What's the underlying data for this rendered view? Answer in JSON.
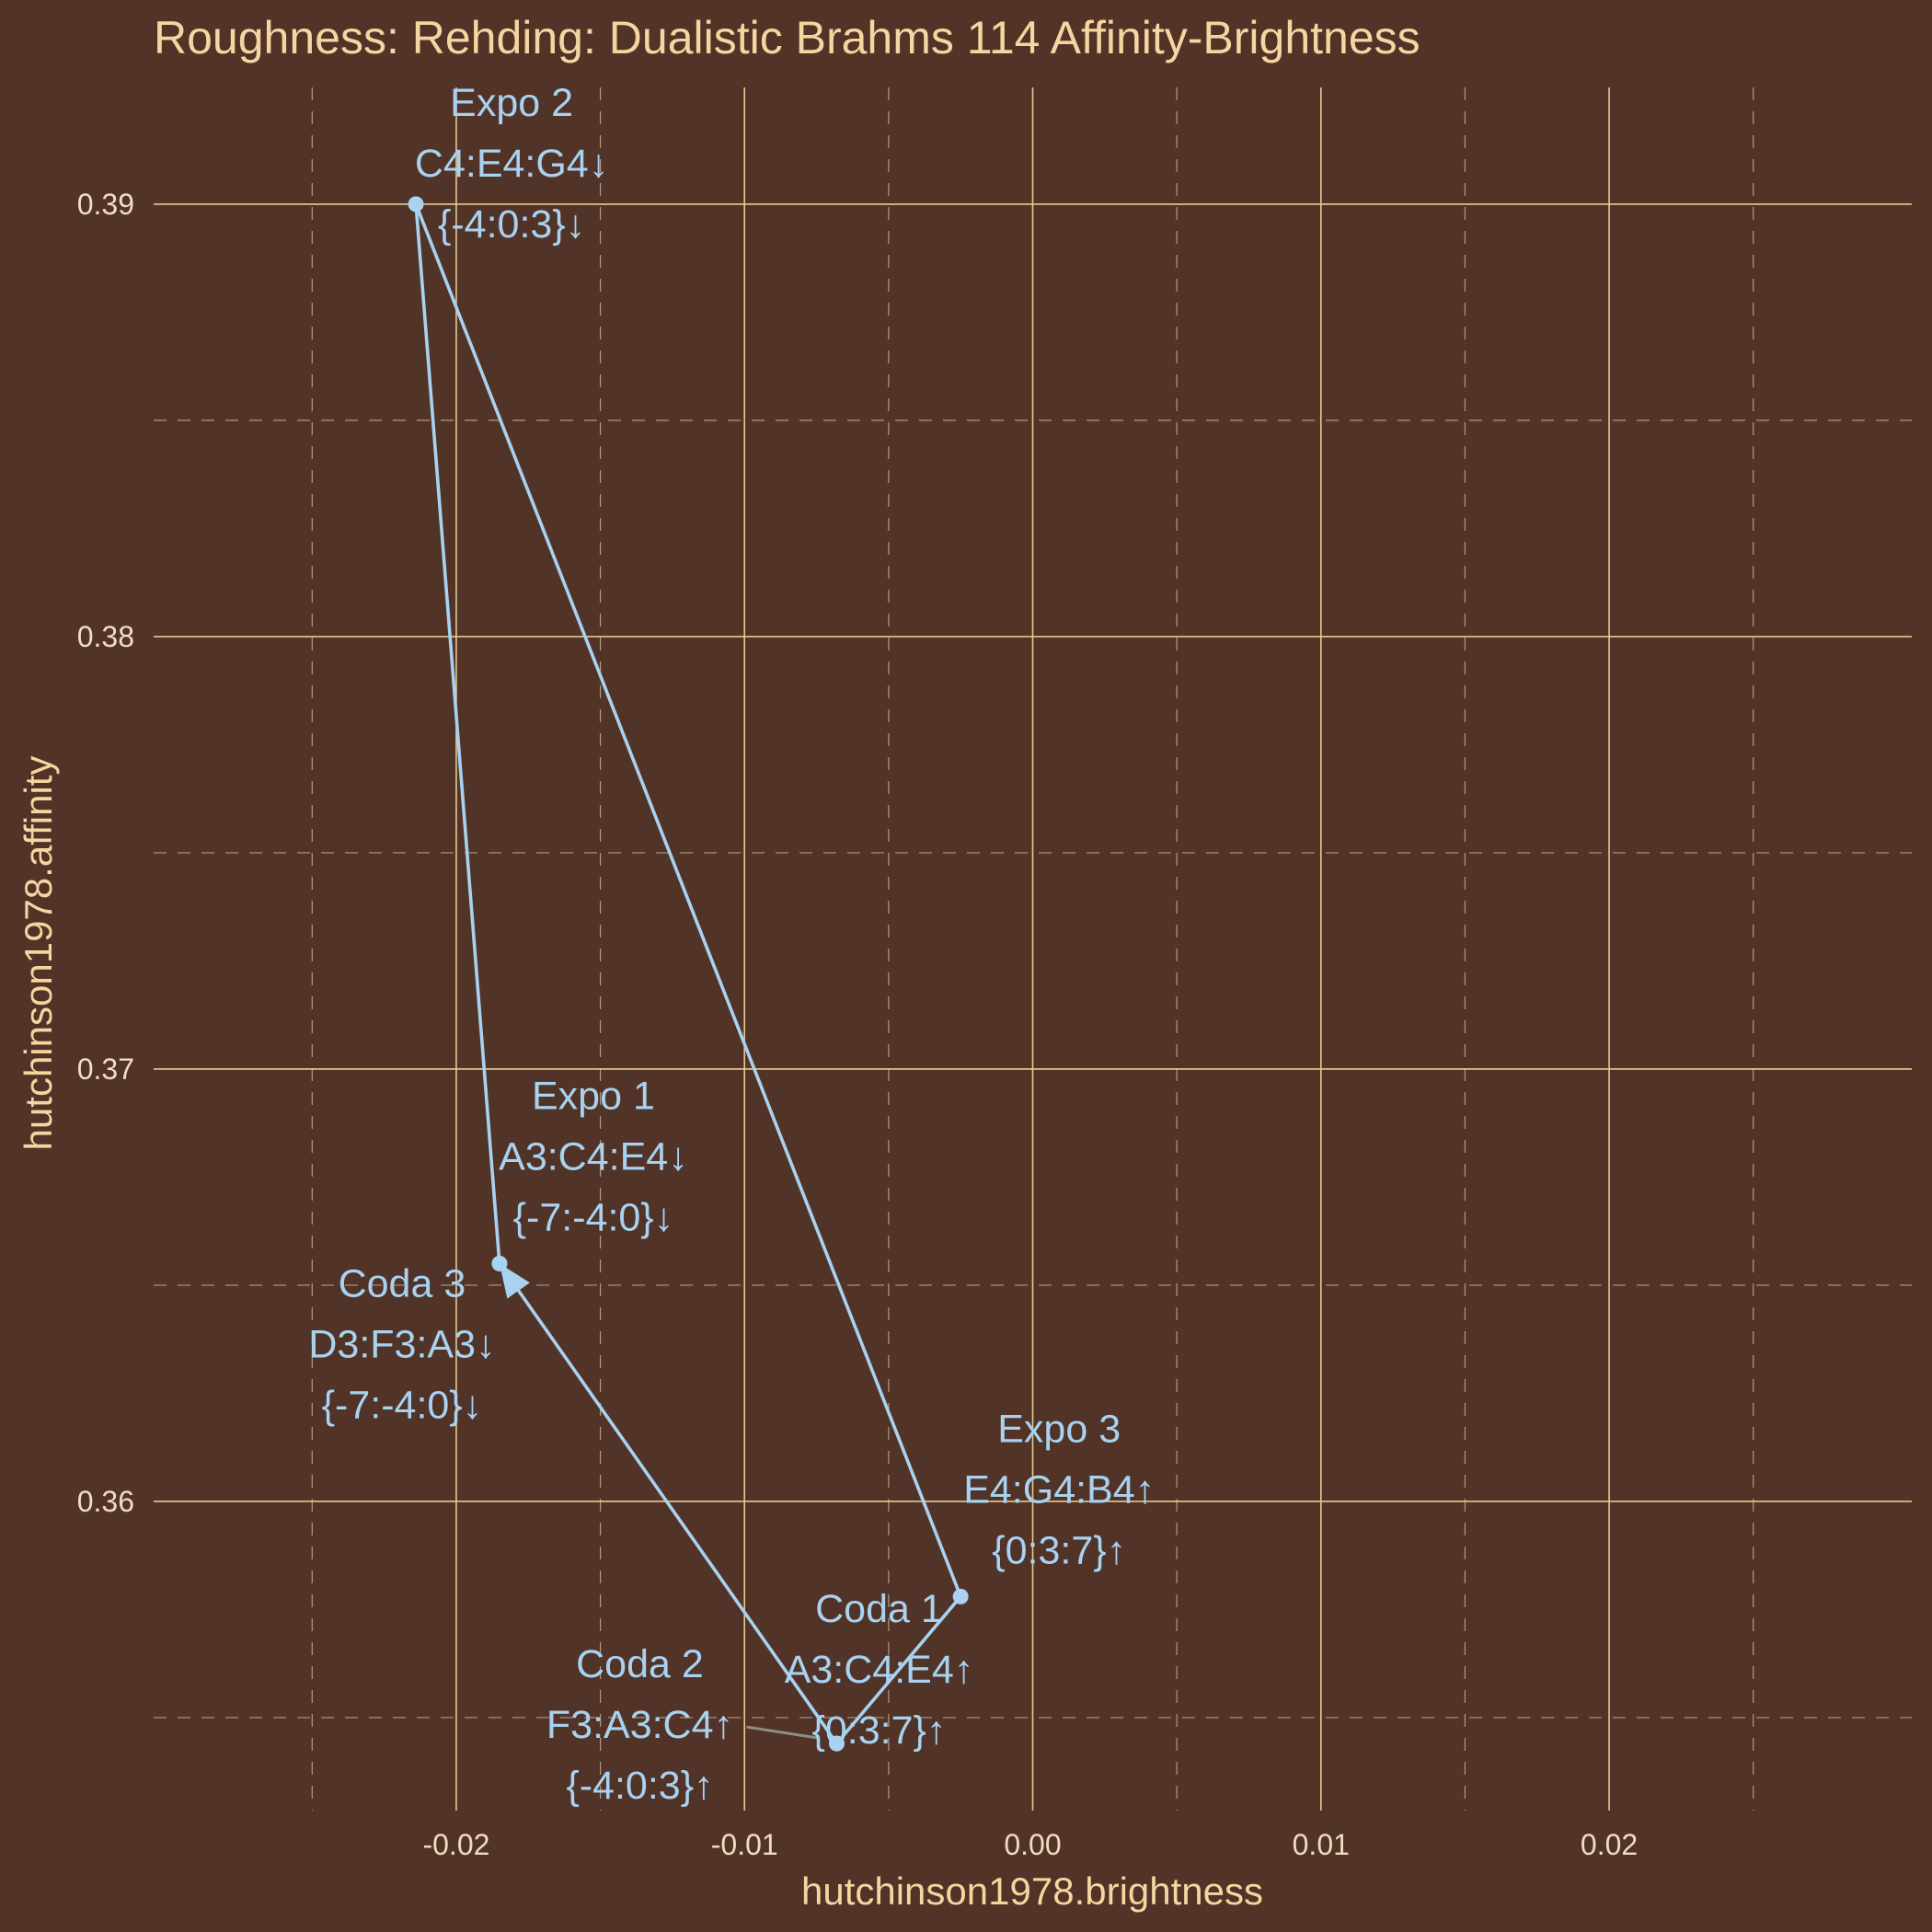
{
  "colors": {
    "background": "#513328",
    "major_grid": "#e8c98f",
    "minor_grid": "#b39a80",
    "title_text": "#f5d5a0",
    "series": "#a8d2f0",
    "connector": "#8a8f80"
  },
  "chart_data": {
    "type": "scatter",
    "title": "Roughness: Rehding: Dualistic Brahms 114 Affinity-Brightness",
    "xlabel": "hutchinson1978.brightness",
    "ylabel": "hutchinson1978.affinity",
    "xlim": [
      -0.0305,
      0.0305
    ],
    "ylim": [
      0.35285,
      0.3927
    ],
    "x_ticks": [
      -0.02,
      -0.01,
      0.0,
      0.01,
      0.02
    ],
    "x_tick_labels": [
      "-0.02",
      "-0.01",
      "0.00",
      "0.01",
      "0.02"
    ],
    "y_ticks": [
      0.36,
      0.37,
      0.38,
      0.39
    ],
    "y_tick_labels": [
      "0.36",
      "0.37",
      "0.38",
      "0.39"
    ],
    "grid": true,
    "legend": "none",
    "points": [
      {
        "id": "expo1",
        "x": -0.0185,
        "y": 0.3655,
        "label": "Expo 1",
        "chord": "A3:C4:E4↓",
        "set": "{-7:-4:0}↓"
      },
      {
        "id": "expo2",
        "x": -0.0214,
        "y": 0.39,
        "label": "Expo 2",
        "chord": "C4:E4:G4↓",
        "set": "{-4:0:3}↓"
      },
      {
        "id": "expo3",
        "x": -0.0025,
        "y": 0.3578,
        "label": "Expo 3",
        "chord": "E4:G4:B4↑",
        "set": "{0:3:7}↑"
      },
      {
        "id": "coda1",
        "x": -0.0068,
        "y": 0.3544,
        "label": "Coda 1",
        "chord": "A3:C4:E4↑",
        "set": "{0:3:7}↑"
      },
      {
        "id": "coda2",
        "x": -0.0068,
        "y": 0.3544,
        "label": "Coda 2",
        "chord": "F3:A3:C4↑",
        "set": "{-4:0:3}↑"
      },
      {
        "id": "coda3",
        "x": -0.0185,
        "y": 0.3655,
        "label": "Coda 3",
        "chord": "D3:F3:A3↓",
        "set": "{-7:-4:0}↓"
      }
    ],
    "path_order": [
      "expo1",
      "expo2",
      "expo3",
      "coda1",
      "coda2",
      "coda3"
    ]
  }
}
